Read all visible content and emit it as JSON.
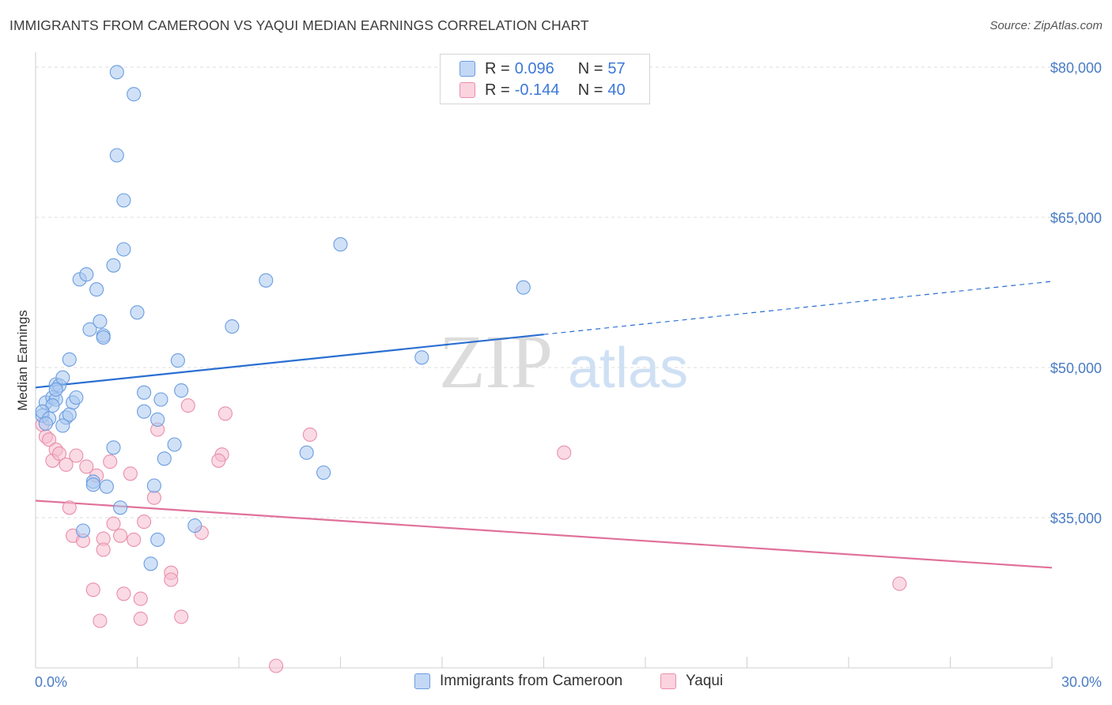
{
  "header": {
    "title": "IMMIGRANTS FROM CAMEROON VS YAQUI MEDIAN EARNINGS CORRELATION CHART",
    "source": "Source: ZipAtlas.com"
  },
  "watermark": {
    "zip": "ZIP",
    "atlas": "atlas"
  },
  "legend": {
    "rows": [
      {
        "r_label": "R =",
        "r_value": "0.096",
        "n_label": "N =",
        "n_value": "57"
      },
      {
        "r_label": "R =",
        "r_value": "-0.144",
        "n_label": "N =",
        "n_value": "40"
      }
    ]
  },
  "colors": {
    "series_blue_fill": "#a9c8f0",
    "series_blue_stroke": "#6b9de0",
    "series_blue_line": "#2a6fd1",
    "series_pink_fill": "#f6bccd",
    "series_pink_stroke": "#e98fab",
    "series_pink_line": "#e0719a",
    "tick_text": "#4a7cc4",
    "grid": "#dedede"
  },
  "chart_data": {
    "type": "scatter",
    "ylabel": "Median Earnings",
    "xlabel": "",
    "xlim": [
      0,
      30
    ],
    "ylim": [
      20000,
      81500
    ],
    "x_ticks": [
      {
        "value": 0,
        "label": "0.0%"
      },
      {
        "value": 30,
        "label": "30.0%"
      }
    ],
    "y_ticks": [
      {
        "value": 80000,
        "label": "$80,000"
      },
      {
        "value": 65000,
        "label": "$65,000"
      },
      {
        "value": 50000,
        "label": "$50,000"
      },
      {
        "value": 35000,
        "label": "$35,000"
      }
    ],
    "grid": true,
    "legend_position": "top-center",
    "series": [
      {
        "name": "Immigrants from Cameroon",
        "color": "#a9c8f0",
        "trend": {
          "x0": 0,
          "y0": 48000,
          "x1": 15,
          "y1": 53300,
          "x_dash_end": 30,
          "y_dash_end": 58600
        },
        "points": [
          [
            0.2,
            45200
          ],
          [
            0.3,
            46500
          ],
          [
            0.5,
            47000
          ],
          [
            0.6,
            46800
          ],
          [
            0.5,
            46200
          ],
          [
            0.6,
            48300
          ],
          [
            0.7,
            48200
          ],
          [
            0.8,
            49000
          ],
          [
            1.0,
            50800
          ],
          [
            0.9,
            45000
          ],
          [
            1.1,
            46500
          ],
          [
            1.2,
            47000
          ],
          [
            0.8,
            44200
          ],
          [
            1.3,
            58800
          ],
          [
            1.5,
            59300
          ],
          [
            1.6,
            53800
          ],
          [
            1.8,
            57800
          ],
          [
            1.9,
            54600
          ],
          [
            2.0,
            53200
          ],
          [
            2.0,
            53000
          ],
          [
            2.4,
            79500
          ],
          [
            2.9,
            77300
          ],
          [
            2.4,
            71200
          ],
          [
            2.6,
            66700
          ],
          [
            2.6,
            61800
          ],
          [
            2.3,
            60200
          ],
          [
            3.0,
            55500
          ],
          [
            3.2,
            47500
          ],
          [
            3.2,
            45600
          ],
          [
            3.6,
            44800
          ],
          [
            3.7,
            46800
          ],
          [
            4.2,
            50700
          ],
          [
            4.3,
            47700
          ],
          [
            4.1,
            42300
          ],
          [
            3.8,
            40900
          ],
          [
            2.3,
            42000
          ],
          [
            1.7,
            38600
          ],
          [
            1.7,
            38300
          ],
          [
            2.1,
            38100
          ],
          [
            3.5,
            38200
          ],
          [
            2.5,
            36000
          ],
          [
            1.4,
            33700
          ],
          [
            3.6,
            32800
          ],
          [
            3.4,
            30400
          ],
          [
            4.7,
            34200
          ],
          [
            5.8,
            54100
          ],
          [
            6.8,
            58700
          ],
          [
            8.0,
            41500
          ],
          [
            8.5,
            39500
          ],
          [
            9.0,
            62300
          ],
          [
            11.4,
            51000
          ],
          [
            14.4,
            58000
          ],
          [
            0.2,
            45600
          ],
          [
            0.4,
            44900
          ],
          [
            0.6,
            47800
          ],
          [
            1.0,
            45300
          ],
          [
            0.3,
            44400
          ]
        ]
      },
      {
        "name": "Yaqui",
        "color": "#f6bccd",
        "trend": {
          "x0": 0,
          "y0": 36700,
          "x1": 30,
          "y1": 30000
        },
        "points": [
          [
            0.2,
            44300
          ],
          [
            0.3,
            43100
          ],
          [
            0.4,
            42800
          ],
          [
            0.6,
            41800
          ],
          [
            0.5,
            40700
          ],
          [
            0.7,
            41400
          ],
          [
            0.9,
            40300
          ],
          [
            1.2,
            41200
          ],
          [
            1.5,
            40100
          ],
          [
            1.8,
            39200
          ],
          [
            2.2,
            40600
          ],
          [
            2.8,
            39400
          ],
          [
            1.0,
            36000
          ],
          [
            1.1,
            33200
          ],
          [
            1.4,
            32700
          ],
          [
            2.0,
            32900
          ],
          [
            2.3,
            34400
          ],
          [
            2.5,
            33200
          ],
          [
            2.9,
            32800
          ],
          [
            3.2,
            34600
          ],
          [
            3.5,
            37000
          ],
          [
            3.6,
            43800
          ],
          [
            4.5,
            46200
          ],
          [
            5.6,
            45400
          ],
          [
            5.5,
            41300
          ],
          [
            5.4,
            40700
          ],
          [
            8.1,
            43300
          ],
          [
            4.9,
            33500
          ],
          [
            4.0,
            29500
          ],
          [
            4.0,
            28800
          ],
          [
            2.0,
            31800
          ],
          [
            1.7,
            27800
          ],
          [
            2.6,
            27400
          ],
          [
            3.1,
            26900
          ],
          [
            1.9,
            24700
          ],
          [
            3.1,
            24900
          ],
          [
            4.3,
            25100
          ],
          [
            7.1,
            20200
          ],
          [
            15.6,
            41500
          ],
          [
            25.5,
            28400
          ]
        ]
      }
    ]
  }
}
